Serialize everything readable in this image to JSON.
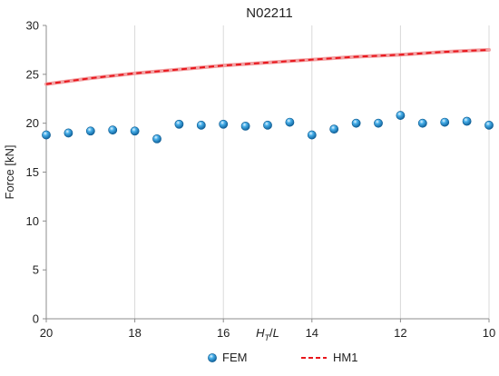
{
  "chart_data": {
    "type": "scatter",
    "title": "N02211",
    "xlabel": "H_T/L",
    "ylabel": "Force [kN]",
    "xlim": [
      20,
      10
    ],
    "x_reversed": true,
    "ylim": [
      0,
      30
    ],
    "xticks": [
      20,
      18,
      16,
      14,
      12,
      10
    ],
    "yticks": [
      0,
      5,
      10,
      15,
      20,
      25,
      30
    ],
    "grid": {
      "vertical": true,
      "horizontal": false
    },
    "legend_position": "bottom",
    "series": [
      {
        "name": "FEM",
        "kind": "markers",
        "color": "#1f86c8",
        "x": [
          20,
          19.5,
          19,
          18.5,
          18,
          17.5,
          17,
          16.5,
          16,
          15.5,
          15,
          14.5,
          14,
          13.5,
          13,
          12.5,
          12,
          11.5,
          11,
          10.5,
          10
        ],
        "y": [
          18.8,
          19.0,
          19.2,
          19.3,
          19.2,
          18.4,
          19.9,
          19.8,
          19.9,
          19.7,
          19.8,
          20.1,
          18.8,
          19.4,
          20.0,
          20.0,
          20.8,
          20.0,
          20.1,
          20.2,
          19.8
        ]
      },
      {
        "name": "HM1",
        "kind": "dashed-line",
        "color": "#e8161c",
        "x": [
          20,
          19,
          18,
          17,
          16,
          15,
          14,
          13,
          12,
          11,
          10
        ],
        "y": [
          24.0,
          24.6,
          25.1,
          25.5,
          25.9,
          26.2,
          26.5,
          26.8,
          27.0,
          27.3,
          27.5
        ]
      }
    ]
  }
}
